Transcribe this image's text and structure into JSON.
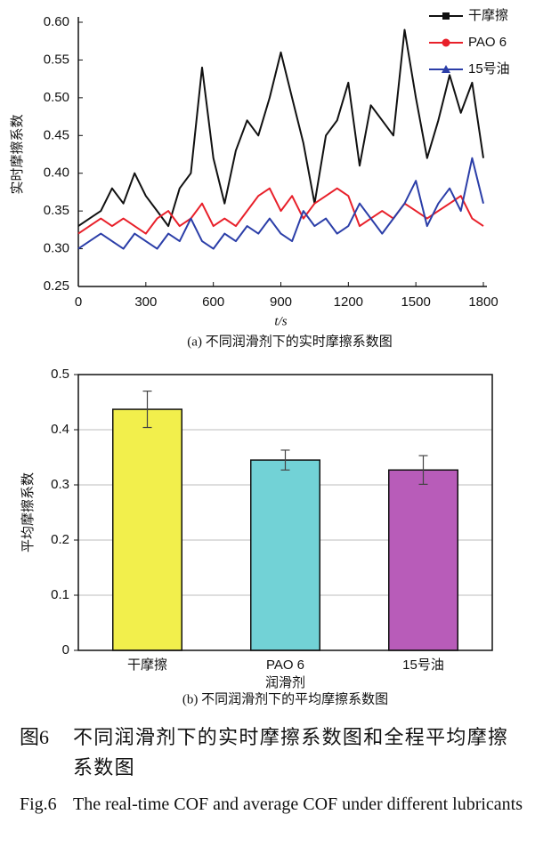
{
  "chart_data": [
    {
      "type": "line",
      "subtitle": "(a) 不同润滑剂下的实时摩擦系数图",
      "xlabel": "t/s",
      "ylabel": "实时摩擦系数",
      "x": [
        0,
        50,
        100,
        150,
        200,
        250,
        300,
        350,
        400,
        450,
        500,
        550,
        600,
        650,
        700,
        750,
        800,
        850,
        900,
        950,
        1000,
        1050,
        1100,
        1150,
        1200,
        1250,
        1300,
        1350,
        1400,
        1450,
        1500,
        1550,
        1600,
        1650,
        1700,
        1750,
        1800
      ],
      "series": [
        {
          "name": "干摩擦",
          "color": "#111111",
          "marker": "square",
          "values": [
            0.33,
            0.34,
            0.35,
            0.38,
            0.36,
            0.4,
            0.37,
            0.35,
            0.33,
            0.38,
            0.4,
            0.54,
            0.42,
            0.36,
            0.43,
            0.47,
            0.45,
            0.5,
            0.56,
            0.5,
            0.44,
            0.36,
            0.45,
            0.47,
            0.52,
            0.41,
            0.49,
            0.47,
            0.45,
            0.59,
            0.5,
            0.42,
            0.47,
            0.53,
            0.48,
            0.52,
            0.42
          ]
        },
        {
          "name": "PAO 6",
          "color": "#e8202a",
          "marker": "circle",
          "values": [
            0.32,
            0.33,
            0.34,
            0.33,
            0.34,
            0.33,
            0.32,
            0.34,
            0.35,
            0.33,
            0.34,
            0.36,
            0.33,
            0.34,
            0.33,
            0.35,
            0.37,
            0.38,
            0.35,
            0.37,
            0.34,
            0.36,
            0.37,
            0.38,
            0.37,
            0.33,
            0.34,
            0.35,
            0.34,
            0.36,
            0.35,
            0.34,
            0.35,
            0.36,
            0.37,
            0.34,
            0.33
          ]
        },
        {
          "name": "15号油",
          "color": "#2b3ea8",
          "marker": "triangle",
          "values": [
            0.3,
            0.31,
            0.32,
            0.31,
            0.3,
            0.32,
            0.31,
            0.3,
            0.32,
            0.31,
            0.34,
            0.31,
            0.3,
            0.32,
            0.31,
            0.33,
            0.32,
            0.34,
            0.32,
            0.31,
            0.35,
            0.33,
            0.34,
            0.32,
            0.33,
            0.36,
            0.34,
            0.32,
            0.34,
            0.36,
            0.39,
            0.33,
            0.36,
            0.38,
            0.35,
            0.42,
            0.36
          ]
        }
      ],
      "xlim": [
        0,
        1800
      ],
      "xticks": [
        0,
        300,
        600,
        900,
        1200,
        1500,
        1800
      ],
      "ylim": [
        0.25,
        0.6
      ],
      "yticks": [
        0.25,
        {
          "value": 0.3,
          "label": "0.30"
        },
        0.35,
        {
          "value": 0.4,
          "label": "0.40"
        },
        0.45,
        {
          "value": 0.5,
          "label": "0.50"
        },
        0.55,
        {
          "value": 0.6,
          "label": "0.60"
        }
      ],
      "legend": "top-right"
    },
    {
      "type": "bar",
      "subtitle": "(b) 不同润滑剂下的平均摩擦系数图",
      "xlabel": "润滑剂",
      "ylabel": "平均摩擦系数",
      "categories": [
        "干摩擦",
        "PAO 6",
        "15号油"
      ],
      "values": [
        0.437,
        0.345,
        0.327
      ],
      "errors": [
        0.033,
        0.018,
        0.026
      ],
      "colors": [
        "#f2ef4c",
        "#72d2d6",
        "#b85cb9"
      ],
      "ylim": [
        0,
        0.5
      ],
      "yticks": [
        0,
        0.1,
        0.2,
        0.3,
        0.4,
        0.5
      ],
      "grid": true
    }
  ],
  "caption": {
    "zh_label": "图6",
    "zh_text": "不同润滑剂下的实时摩擦系数图和全程平均摩擦系数图",
    "en_label": "Fig.6",
    "en_text": "The real-time COF and average COF under different lubricants"
  }
}
